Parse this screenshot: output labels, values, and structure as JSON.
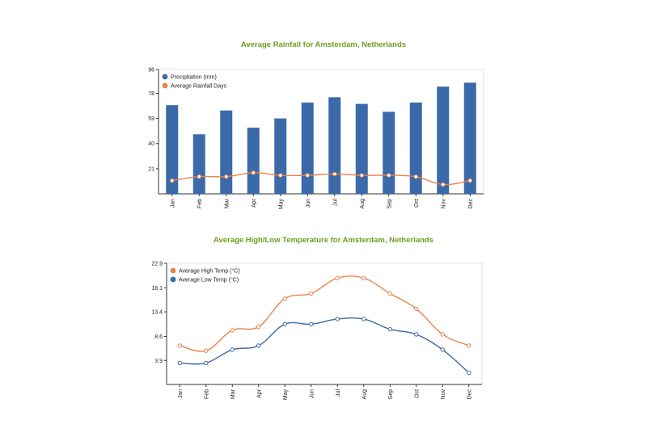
{
  "chart_data": [
    {
      "type": "bar",
      "title": "Average Rainfall for Amsterdam, Netherlands",
      "categories": [
        "Jan",
        "Feb",
        "Mar",
        "Apr",
        "May",
        "Jun",
        "Jul",
        "Aug",
        "Sep",
        "Oct",
        "Nov",
        "Dec"
      ],
      "yticks": [
        "21",
        "40",
        "59",
        "78",
        "96"
      ],
      "ylim": [
        2,
        96
      ],
      "legend_position": "top-left",
      "series": [
        {
          "name": "Precipitation (mm)",
          "kind": "bar",
          "color": "#3b6aa8",
          "values": [
            69,
            47,
            65,
            52,
            59,
            71,
            75,
            70,
            64,
            71,
            83,
            86
          ]
        },
        {
          "name": "Average Rainfall Days",
          "kind": "line",
          "color": "#e8844a",
          "values": [
            12,
            15,
            15,
            18,
            16,
            16,
            17,
            16,
            16,
            15,
            9,
            12
          ]
        }
      ]
    },
    {
      "type": "line",
      "title": "Average High/Low Temperature for Amsterdam, Netherlands",
      "categories": [
        "Jan",
        "Feb",
        "Mar",
        "Apr",
        "May",
        "Jun",
        "Jul",
        "Aug",
        "Sep",
        "Oct",
        "Nov",
        "Dec"
      ],
      "yticks": [
        "3.9",
        "8.6",
        "13.4",
        "18.1",
        "22.9"
      ],
      "ylim": [
        -0.8,
        22.9
      ],
      "legend_position": "top-left",
      "series": [
        {
          "name": "Average High Temp (°C)",
          "color": "#e8844a",
          "values": [
            6.8,
            5.8,
            9.8,
            10.5,
            16.0,
            17.0,
            20.0,
            20.0,
            17.0,
            14.0,
            9.0,
            6.8
          ]
        },
        {
          "name": "Average Low Temp (°C)",
          "color": "#3b6aa8",
          "values": [
            3.4,
            3.4,
            6.0,
            6.8,
            11.0,
            11.0,
            12.0,
            12.0,
            10.0,
            9.0,
            6.0,
            1.5
          ]
        }
      ]
    }
  ]
}
